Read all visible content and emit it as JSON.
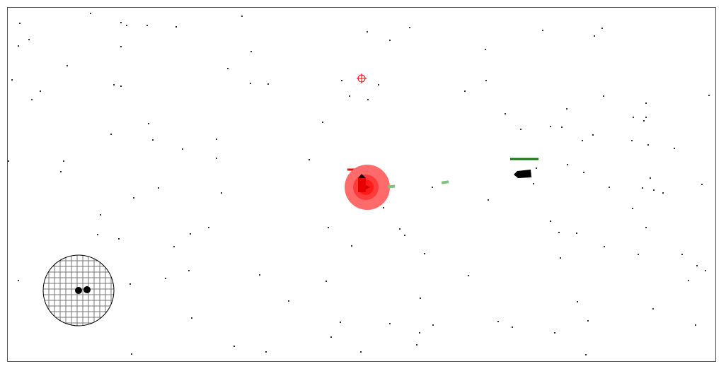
{
  "game": {
    "player": {
      "health_fraction": 1.0,
      "color": "#ff0000",
      "shield_color": "#ff6b6b"
    },
    "enemy": {
      "health_fraction": 1.0,
      "color": "#000000",
      "health_color": "#117711"
    },
    "projectile_color": "#7ec07e",
    "crosshair_color": "#ff0000",
    "radar": {
      "blips": 2
    }
  }
}
